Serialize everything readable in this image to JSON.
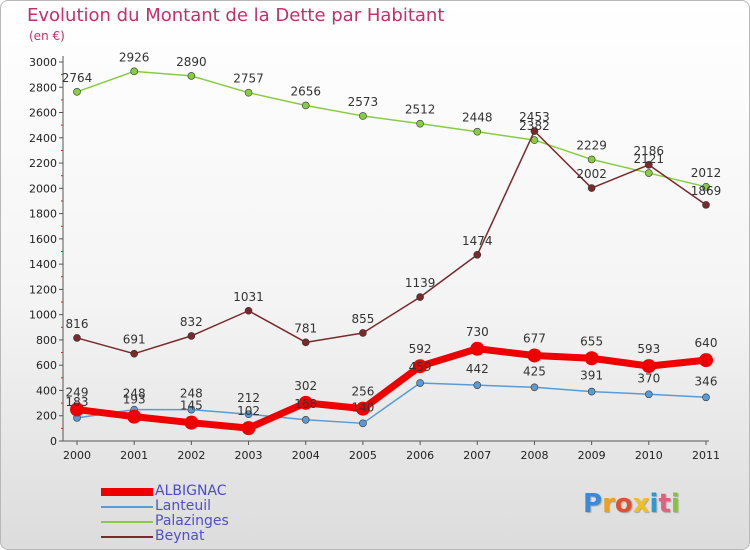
{
  "title": "Evolution du Montant de la Dette par Habitant",
  "subtitle": "(en €)",
  "logo": {
    "letters": [
      "P",
      "r",
      "o",
      "x",
      "i",
      "t",
      "i"
    ],
    "colors": [
      "#3a8ad8",
      "#f0a020",
      "#e05030",
      "#f0c020",
      "#2a9ad0",
      "#e06080",
      "#8ac040"
    ]
  },
  "chart_data": {
    "type": "line",
    "title": "Evolution du Montant de la Dette par Habitant",
    "ylabel": "(en €)",
    "xlabel": "",
    "ylim": [
      0,
      3000
    ],
    "ytick_step": 200,
    "x": [
      "2000",
      "2001",
      "2002",
      "2003",
      "2004",
      "2005",
      "2006",
      "2007",
      "2008",
      "2009",
      "2010",
      "2011"
    ],
    "series": [
      {
        "name": "ALBIGNAC",
        "color": "#ee0000",
        "values": [
          249,
          193,
          145,
          102,
          302,
          256,
          592,
          730,
          677,
          655,
          593,
          640
        ]
      },
      {
        "name": "Lanteuil",
        "color": "#5a9bd5",
        "values": [
          183,
          248,
          248,
          212,
          168,
          140,
          459,
          442,
          425,
          391,
          370,
          346
        ]
      },
      {
        "name": "Palazinges",
        "color": "#88cc44",
        "values": [
          2764,
          2926,
          2890,
          2757,
          2656,
          2573,
          2512,
          2448,
          2382,
          2229,
          2121,
          2012
        ]
      },
      {
        "name": "Beynat",
        "color": "#7a2a2a",
        "values": [
          816,
          691,
          832,
          1031,
          781,
          855,
          1139,
          1474,
          2453,
          2002,
          2186,
          1869
        ]
      }
    ],
    "labels": [
      {
        "series": "ALBIGNAC",
        "values": [
          "249",
          "193",
          "145",
          "102",
          "302",
          "256",
          "592",
          "730",
          "677",
          "655",
          "593",
          "640"
        ]
      },
      {
        "series": "Lanteuil",
        "values": [
          "183",
          "248",
          "248",
          "212",
          "168",
          "140",
          "459",
          "442",
          "425",
          "391",
          "370",
          "346"
        ]
      },
      {
        "series": "Palazinges",
        "values": [
          "2764",
          "2926",
          "2890",
          "2757",
          "2656",
          "2573",
          "2512",
          "2448",
          "2382",
          "2229",
          "2121",
          "2012"
        ]
      },
      {
        "series": "Beynat",
        "values": [
          "816",
          "691",
          "832",
          "1031",
          "781",
          "855",
          "1139",
          "1474",
          "2453",
          "2002",
          "2186",
          "1869"
        ]
      }
    ],
    "legend_position": "bottom-left",
    "grid": false
  }
}
